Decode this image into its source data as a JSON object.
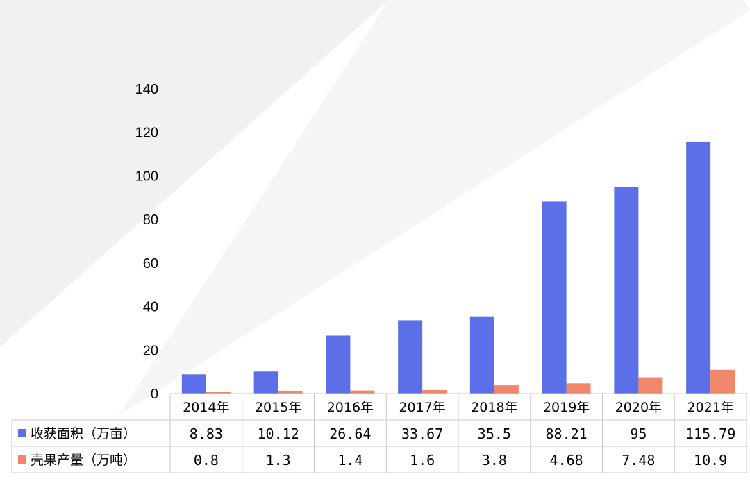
{
  "colors": {
    "area": "#5b6fe8",
    "yield": "#f0866a"
  },
  "chart_data": {
    "type": "bar",
    "categories": [
      "2014年",
      "2015年",
      "2016年",
      "2017年",
      "2018年",
      "2019年",
      "2020年",
      "2021年"
    ],
    "series": [
      {
        "name": "收获面积（万亩）",
        "values": [
          8.83,
          10.12,
          26.64,
          33.67,
          35.5,
          88.21,
          95,
          115.79
        ],
        "labels": [
          "8.83",
          "10.12",
          "26.64",
          "33.67",
          "35.5",
          "88.21",
          "95",
          "115.79"
        ]
      },
      {
        "name": "壳果产量（万吨）",
        "values": [
          0.8,
          1.3,
          1.4,
          1.6,
          3.8,
          4.68,
          7.48,
          10.9
        ],
        "labels": [
          "0.8",
          "1.3",
          "1.4",
          "1.6",
          "3.8",
          "4.68",
          "7.48",
          "10.9"
        ]
      }
    ],
    "ylim": [
      0,
      140
    ],
    "yticks": [
      0,
      20,
      40,
      60,
      80,
      100,
      120,
      140
    ],
    "data_table": true,
    "legend": "in data table"
  }
}
